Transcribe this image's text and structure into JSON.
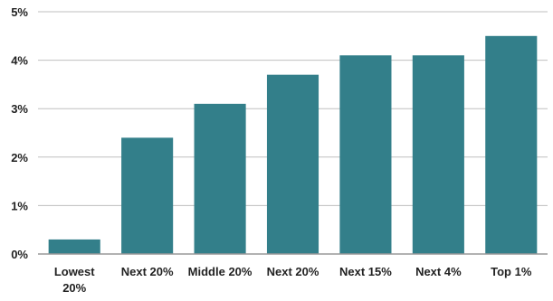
{
  "chart_data": {
    "type": "bar",
    "categories": [
      [
        "Lowest",
        "20%"
      ],
      [
        "Next 20%"
      ],
      [
        "Middle 20%"
      ],
      [
        "Next 20%"
      ],
      [
        "Next 15%"
      ],
      [
        "Next 4%"
      ],
      [
        "Top 1%"
      ]
    ],
    "values": [
      0.3,
      2.4,
      3.1,
      3.7,
      4.1,
      4.1,
      4.5
    ],
    "yticks": [
      "0%",
      "1%",
      "2%",
      "3%",
      "4%",
      "5%"
    ],
    "ylim": [
      0,
      5
    ],
    "grid": true,
    "bar_color": "#337f8a"
  }
}
